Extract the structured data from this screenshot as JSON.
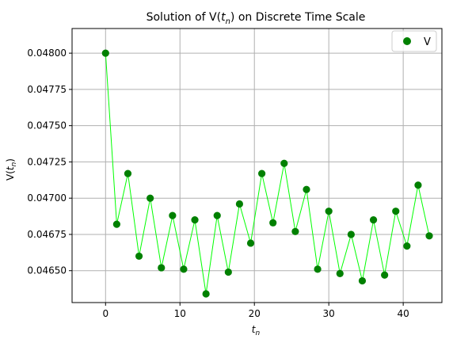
{
  "chart_data": {
    "type": "line",
    "title_prefix": "Solution of V(",
    "title_var": "t",
    "title_sub": "n",
    "title_suffix": ") on Discrete Time Scale",
    "xlabel_var": "t",
    "xlabel_sub": "n",
    "ylabel_prefix": "V(",
    "ylabel_var": "t",
    "ylabel_sub": "n",
    "ylabel_suffix": ")",
    "xlim": [
      -4.5,
      45.2
    ],
    "ylim": [
      0.04628,
      0.04817
    ],
    "x_ticks": [
      0,
      10,
      20,
      30,
      40
    ],
    "y_ticks": [
      0.0465,
      0.04675,
      0.047,
      0.04725,
      0.0475,
      0.04775,
      0.048
    ],
    "y_tick_labels": [
      "0.04650",
      "0.04675",
      "0.04700",
      "0.04725",
      "0.04750",
      "0.04775",
      "0.04800"
    ],
    "grid": true,
    "legend_position": "top-right",
    "series": [
      {
        "name": "V",
        "marker_color": "#008000",
        "line_color": "#00ff00",
        "x": [
          0,
          1.5,
          3,
          4.5,
          6,
          7.5,
          9,
          10.5,
          12,
          13.5,
          15,
          16.5,
          18,
          19.5,
          21,
          22.5,
          24,
          25.5,
          27,
          28.5,
          30,
          31.5,
          33,
          34.5,
          36,
          37.5,
          39,
          40.5,
          42,
          43.5
        ],
        "y": [
          0.048,
          0.04682,
          0.04717,
          0.0466,
          0.047,
          0.04652,
          0.04688,
          0.04651,
          0.04685,
          0.04634,
          0.04688,
          0.04649,
          0.04696,
          0.04669,
          0.04717,
          0.04683,
          0.04724,
          0.04677,
          0.04706,
          0.04651,
          0.04691,
          0.04648,
          0.04675,
          0.04643,
          0.04685,
          0.04647,
          0.04691,
          0.04667,
          0.04709,
          0.04674
        ]
      }
    ]
  }
}
